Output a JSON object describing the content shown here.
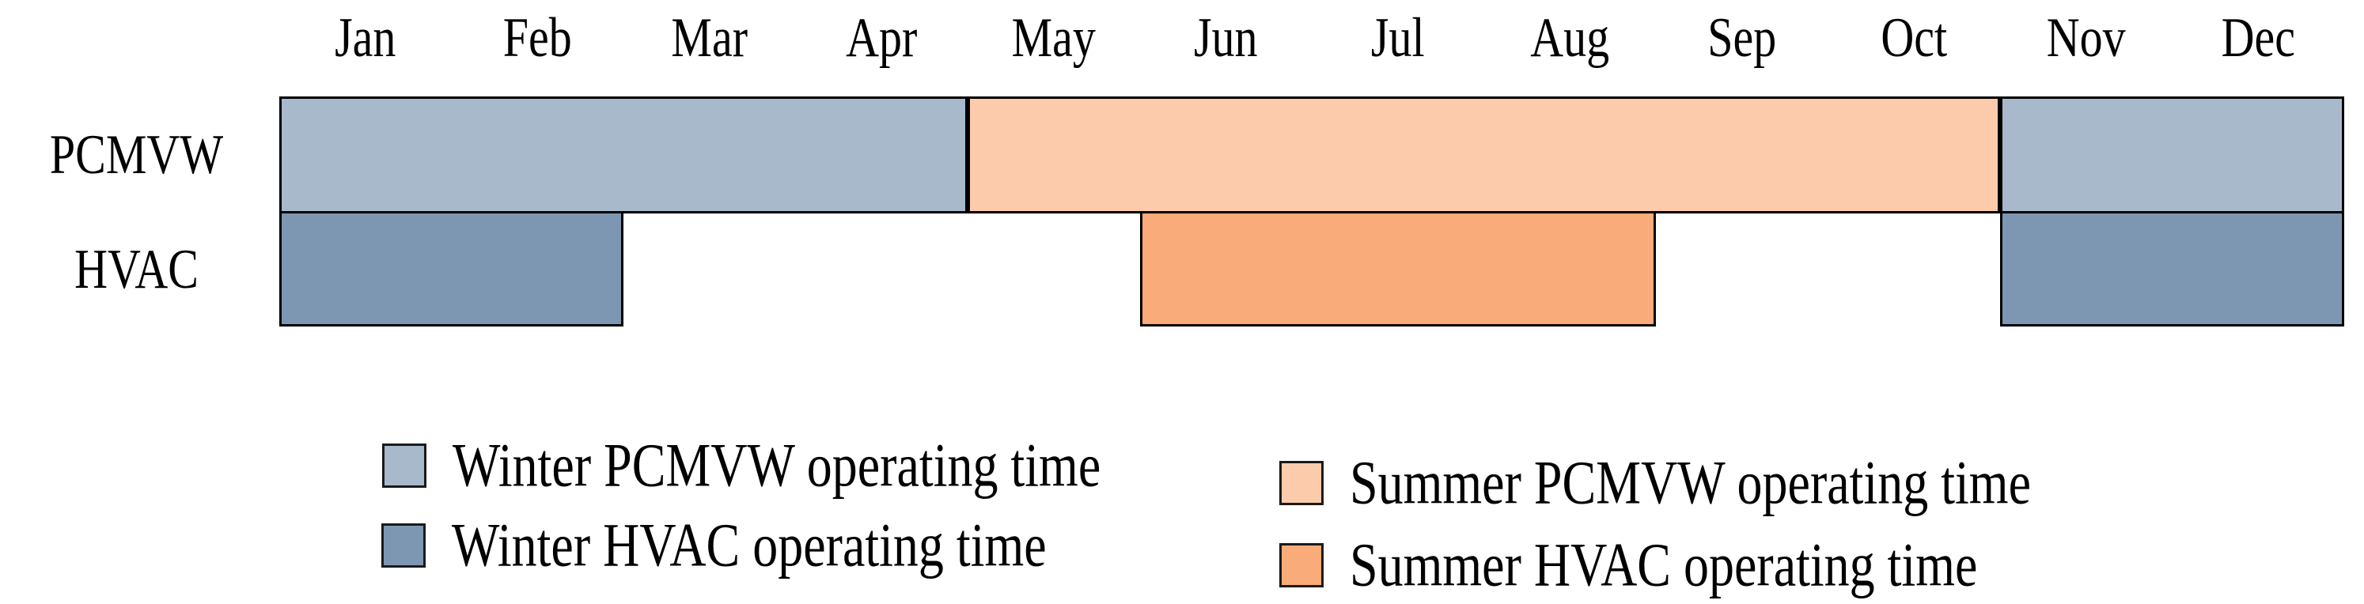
{
  "chart_data": {
    "type": "bar",
    "subtype": "gantt-schedule",
    "title": "",
    "grid": false,
    "x_axis": {
      "unit": "month",
      "categories": [
        "Jan",
        "Feb",
        "Mar",
        "Apr",
        "May",
        "Jun",
        "Jul",
        "Aug",
        "Sep",
        "Oct",
        "Nov",
        "Dec"
      ]
    },
    "rows": [
      {
        "label": "PCMVW",
        "segments": [
          {
            "series": "Winter PCMVW operating time",
            "start": "Jan",
            "end": "Apr",
            "start_index": 0,
            "end_index": 4,
            "color_key": "winter_pcmvw"
          },
          {
            "series": "Summer PCMVW operating time",
            "start": "May",
            "end": "Oct",
            "start_index": 4,
            "end_index": 10,
            "color_key": "summer_pcmvw"
          },
          {
            "series": "Winter PCMVW operating time",
            "start": "Nov",
            "end": "Dec",
            "start_index": 10,
            "end_index": 12,
            "color_key": "winter_pcmvw"
          }
        ]
      },
      {
        "label": "HVAC",
        "segments": [
          {
            "series": "Winter HVAC operating time",
            "start": "Jan",
            "end": "Feb",
            "start_index": 0,
            "end_index": 2,
            "color_key": "winter_hvac"
          },
          {
            "series": "Summer HVAC operating time",
            "start": "Jun",
            "end": "Aug",
            "start_index": 5,
            "end_index": 8,
            "color_key": "summer_hvac"
          },
          {
            "series": "Winter HVAC operating time",
            "start": "Nov",
            "end": "Dec",
            "start_index": 10,
            "end_index": 12,
            "color_key": "winter_hvac"
          }
        ]
      }
    ],
    "legend": {
      "position": "bottom",
      "columns": [
        {
          "items": [
            {
              "label": "Winter PCMVW operating time",
              "color_key": "winter_pcmvw"
            },
            {
              "label": "Winter HVAC operating time",
              "color_key": "winter_hvac"
            }
          ]
        },
        {
          "items": [
            {
              "label": "Summer PCMVW operating time",
              "color_key": "summer_pcmvw"
            },
            {
              "label": "Summer HVAC operating time",
              "color_key": "summer_hvac"
            }
          ]
        }
      ]
    },
    "colors": {
      "winter_pcmvw": "#A8B9CB",
      "winter_hvac": "#7D97B2",
      "summer_pcmvw": "#FBCBAB",
      "summer_hvac": "#F9AB79",
      "outline": "#000000",
      "text": "#000000",
      "background": "#FFFFFF"
    }
  }
}
